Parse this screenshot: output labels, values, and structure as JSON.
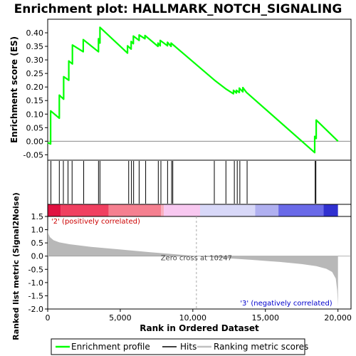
{
  "chart_data": {
    "type": "line",
    "title": "Enrichment plot: HALLMARK_NOTCH_SIGNALING",
    "enrichment_panel": {
      "ylabel": "Enrichment score (ES)",
      "ylim": [
        -0.07,
        0.45
      ],
      "yticks": [
        "0.40",
        "0.35",
        "0.30",
        "0.25",
        "0.20",
        "0.15",
        "0.10",
        "0.05",
        "0.00",
        "-0.05"
      ],
      "ytick_values": [
        0.4,
        0.35,
        0.3,
        0.25,
        0.2,
        0.15,
        0.1,
        0.05,
        0.0,
        -0.05
      ],
      "series": [
        {
          "name": "Enrichment profile",
          "color": "#00ff00",
          "x": [
            0,
            200,
            200,
            800,
            800,
            1100,
            1100,
            1450,
            1450,
            1700,
            1700,
            2450,
            2450,
            3500,
            3500,
            3600,
            3600,
            5500,
            5500,
            5750,
            5750,
            5900,
            5900,
            6300,
            6300,
            6700,
            6700,
            7600,
            7600,
            7750,
            7750,
            8250,
            8250,
            8500,
            8500,
            11500,
            12300,
            12800,
            12800,
            13000,
            13000,
            13200,
            13200,
            13450,
            13450,
            13700,
            18400,
            18400,
            18500,
            18500,
            20000
          ],
          "values": [
            -0.005,
            -0.01,
            0.112,
            0.085,
            0.17,
            0.155,
            0.238,
            0.225,
            0.296,
            0.285,
            0.355,
            0.33,
            0.375,
            0.33,
            0.378,
            0.362,
            0.42,
            0.325,
            0.352,
            0.34,
            0.368,
            0.36,
            0.388,
            0.372,
            0.392,
            0.378,
            0.39,
            0.35,
            0.362,
            0.352,
            0.372,
            0.352,
            0.365,
            0.35,
            0.362,
            0.225,
            0.192,
            0.175,
            0.188,
            0.178,
            0.188,
            0.18,
            0.196,
            0.182,
            0.198,
            0.18,
            -0.042,
            0.018,
            0.01,
            0.078,
            0.0
          ]
        }
      ],
      "zero_line": 0.0
    },
    "hits_panel": {
      "hit_positions": [
        220,
        800,
        1080,
        1400,
        1680,
        2480,
        3500,
        3600,
        5580,
        5770,
        5920,
        6300,
        6750,
        7620,
        7800,
        8260,
        8540,
        8620,
        11480,
        12280,
        12860,
        13060,
        13240,
        13740,
        18430,
        18480
      ]
    },
    "color_bar": {
      "colors": [
        "#e01040",
        "#f04060",
        "#f58090",
        "#f9b0c0",
        "#f8c8f0",
        "#d8d8f8",
        "#b0b0f0",
        "#6a6ae8",
        "#3030d0",
        "#1800c0"
      ],
      "breaks": [
        0,
        900,
        4200,
        7800,
        8000,
        10500,
        14300,
        15900,
        19000,
        20000
      ]
    },
    "metric_panel": {
      "ylabel": "Ranked list metric (Signal2Noise)",
      "ylim": [
        -2.0,
        1.5
      ],
      "yticks": [
        "1.5",
        "1.0",
        "0.5",
        "0.0",
        "-0.5",
        "-1.0",
        "-1.5",
        "-2.0"
      ],
      "ytick_values": [
        1.5,
        1.0,
        0.5,
        0.0,
        -0.5,
        -1.0,
        -1.5,
        -2.0
      ],
      "x": [
        0,
        50,
        150,
        400,
        800,
        1500,
        3000,
        5000,
        7000,
        9000,
        10247,
        12000,
        14000,
        16000,
        17500,
        18500,
        19200,
        19600,
        19850,
        19950,
        20000
      ],
      "values": [
        1.0,
        0.85,
        0.72,
        0.6,
        0.52,
        0.45,
        0.35,
        0.25,
        0.15,
        0.06,
        0.0,
        -0.07,
        -0.14,
        -0.22,
        -0.3,
        -0.38,
        -0.48,
        -0.6,
        -0.85,
        -1.3,
        -1.9
      ],
      "fill_color": "#b8b8b8",
      "zero_cross_text": "Zero cross at 10247",
      "zero_cross_x": 10247,
      "pos_label": "'2' (positively correlated)",
      "neg_label": "'3' (negatively correlated)"
    },
    "xlabel": "Rank in Ordered Dataset",
    "xlim": [
      0,
      20900
    ],
    "xticks": [
      "0",
      "5,000",
      "10,000",
      "15,000",
      "20,000"
    ],
    "xtick_values": [
      0,
      5000,
      10000,
      15000,
      20000
    ],
    "legend": {
      "placement": "bottom",
      "entries": [
        "Enrichment profile",
        "Hits",
        "Ranking metric scores"
      ]
    }
  }
}
